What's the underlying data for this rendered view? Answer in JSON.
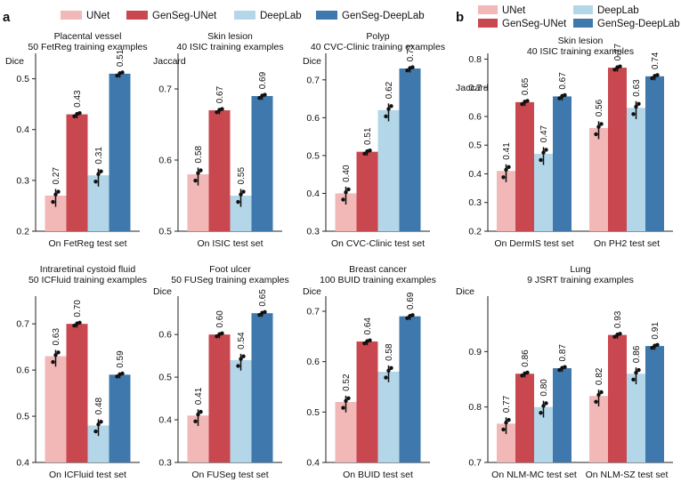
{
  "figure": {
    "panel_a_label": "a",
    "panel_b_label": "b",
    "legend": [
      {
        "label": "UNet",
        "color": "#f2b8b8"
      },
      {
        "label": "GenSeg-UNet",
        "color": "#c9474e"
      },
      {
        "label": "DeepLab",
        "color": "#b3d7e8"
      },
      {
        "label": "GenSeg-DeepLab",
        "color": "#3f78ac"
      }
    ]
  },
  "chart_data": [
    {
      "type": "bar",
      "panel": "a",
      "title_lines": [
        "Placental vessel",
        "50 FetReg training examples"
      ],
      "ylabel": "Dice",
      "ylim": [
        0.2,
        0.55
      ],
      "yticks": [
        0.2,
        0.3,
        0.4,
        0.5
      ],
      "ytick_labels": [
        "0.2",
        "0.3",
        "0.4",
        "0.5"
      ],
      "groups": [
        {
          "label": "On FetReg test set",
          "series": [
            {
              "name": "UNet",
              "value": 0.27,
              "label": "0.27"
            },
            {
              "name": "GenSeg-UNet",
              "value": 0.43,
              "label": "0.43"
            },
            {
              "name": "DeepLab",
              "value": 0.31,
              "label": "0.31"
            },
            {
              "name": "GenSeg-DeepLab",
              "value": 0.51,
              "label": "0.51"
            }
          ]
        }
      ]
    },
    {
      "type": "bar",
      "panel": "a",
      "title_lines": [
        "Skin lesion",
        "40 ISIC training examples"
      ],
      "ylabel": "Jaccard",
      "ylim": [
        0.5,
        0.75
      ],
      "yticks": [
        0.5,
        0.6,
        0.7
      ],
      "ytick_labels": [
        "0.5",
        "0.6",
        "0.7"
      ],
      "groups": [
        {
          "label": "On ISIC test set",
          "series": [
            {
              "name": "UNet",
              "value": 0.58,
              "label": "0.58"
            },
            {
              "name": "GenSeg-UNet",
              "value": 0.67,
              "label": "0.67"
            },
            {
              "name": "DeepLab",
              "value": 0.55,
              "label": "0.55"
            },
            {
              "name": "GenSeg-DeepLab",
              "value": 0.69,
              "label": "0.69"
            }
          ]
        }
      ]
    },
    {
      "type": "bar",
      "panel": "a",
      "title_lines": [
        "Polyp",
        "40 CVC-Clinic training examples"
      ],
      "ylabel": "Dice",
      "ylim": [
        0.3,
        0.77
      ],
      "yticks": [
        0.3,
        0.4,
        0.5,
        0.6,
        0.7
      ],
      "ytick_labels": [
        "0.3",
        "0.4",
        "0.5",
        "0.6",
        "0.7"
      ],
      "groups": [
        {
          "label": "On CVC-Clinic test set",
          "series": [
            {
              "name": "UNet",
              "value": 0.4,
              "label": "0.40"
            },
            {
              "name": "GenSeg-UNet",
              "value": 0.51,
              "label": "0.51"
            },
            {
              "name": "DeepLab",
              "value": 0.62,
              "label": "0.62"
            },
            {
              "name": "GenSeg-DeepLab",
              "value": 0.73,
              "label": "0.73"
            }
          ]
        }
      ]
    },
    {
      "type": "bar",
      "panel": "b",
      "title_lines": [
        "Skin lesion",
        "40 ISIC training examples"
      ],
      "ylabel": "Jaccard",
      "ylim": [
        0.2,
        0.82
      ],
      "yticks": [
        0.2,
        0.3,
        0.4,
        0.5,
        0.6,
        0.7,
        0.8
      ],
      "ytick_labels": [
        "0.2",
        "0.3",
        "0.4",
        "0.5",
        "0.6",
        "0.7",
        "0.8"
      ],
      "groups": [
        {
          "label": "On DermIS test set",
          "series": [
            {
              "name": "UNet",
              "value": 0.41,
              "label": "0.41"
            },
            {
              "name": "GenSeg-UNet",
              "value": 0.65,
              "label": "0.65"
            },
            {
              "name": "DeepLab",
              "value": 0.47,
              "label": "0.47"
            },
            {
              "name": "GenSeg-DeepLab",
              "value": 0.67,
              "label": "0.67"
            }
          ]
        },
        {
          "label": "On PH2 test set",
          "series": [
            {
              "name": "UNet",
              "value": 0.56,
              "label": "0.56"
            },
            {
              "name": "GenSeg-UNet",
              "value": 0.77,
              "label": "0.77"
            },
            {
              "name": "DeepLab",
              "value": 0.63,
              "label": "0.63"
            },
            {
              "name": "GenSeg-DeepLab",
              "value": 0.74,
              "label": "0.74"
            }
          ]
        }
      ]
    },
    {
      "type": "bar",
      "panel": "a",
      "title_lines": [
        "Intraretinal cystoid fluid",
        "50 ICFluid training examples"
      ],
      "ylabel": "",
      "ylim": [
        0.4,
        0.76
      ],
      "yticks": [
        0.4,
        0.5,
        0.6,
        0.7
      ],
      "ytick_labels": [
        "0.4",
        "0.5",
        "0.6",
        "0.7"
      ],
      "groups": [
        {
          "label": "On ICFluid test set",
          "series": [
            {
              "name": "UNet",
              "value": 0.63,
              "label": "0.63"
            },
            {
              "name": "GenSeg-UNet",
              "value": 0.7,
              "label": "0.70"
            },
            {
              "name": "DeepLab",
              "value": 0.48,
              "label": "0.48"
            },
            {
              "name": "GenSeg-DeepLab",
              "value": 0.59,
              "label": "0.59"
            }
          ]
        }
      ]
    },
    {
      "type": "bar",
      "panel": "a",
      "title_lines": [
        "Foot ulcer",
        "50 FUSeg training examples"
      ],
      "ylabel": "Dice",
      "ylim": [
        0.3,
        0.69
      ],
      "yticks": [
        0.3,
        0.4,
        0.5,
        0.6
      ],
      "ytick_labels": [
        "0.3",
        "0.4",
        "0.5",
        "0.6"
      ],
      "groups": [
        {
          "label": "On FUSeg test set",
          "series": [
            {
              "name": "UNet",
              "value": 0.41,
              "label": "0.41"
            },
            {
              "name": "GenSeg-UNet",
              "value": 0.6,
              "label": "0.60"
            },
            {
              "name": "DeepLab",
              "value": 0.54,
              "label": "0.54"
            },
            {
              "name": "GenSeg-DeepLab",
              "value": 0.65,
              "label": "0.65"
            }
          ]
        }
      ]
    },
    {
      "type": "bar",
      "panel": "a",
      "title_lines": [
        "Breast cancer",
        "100 BUID training examples"
      ],
      "ylabel": "Dice",
      "ylim": [
        0.4,
        0.73
      ],
      "yticks": [
        0.4,
        0.5,
        0.6,
        0.7
      ],
      "ytick_labels": [
        "0.4",
        "0.5",
        "0.6",
        "0.7"
      ],
      "groups": [
        {
          "label": "On BUID test set",
          "series": [
            {
              "name": "UNet",
              "value": 0.52,
              "label": "0.52"
            },
            {
              "name": "GenSeg-UNet",
              "value": 0.64,
              "label": "0.64"
            },
            {
              "name": "DeepLab",
              "value": 0.58,
              "label": "0.58"
            },
            {
              "name": "GenSeg-DeepLab",
              "value": 0.69,
              "label": "0.69"
            }
          ]
        }
      ]
    },
    {
      "type": "bar",
      "panel": "b",
      "title_lines": [
        "Lung",
        "9 JSRT training examples"
      ],
      "ylabel": "Dice",
      "ylim": [
        0.7,
        1.0
      ],
      "yticks": [
        0.7,
        0.8,
        0.9
      ],
      "ytick_labels": [
        "0.7",
        "0.8",
        "0.9"
      ],
      "groups": [
        {
          "label": "On NLM-MC test set",
          "series": [
            {
              "name": "UNet",
              "value": 0.77,
              "label": "0.77"
            },
            {
              "name": "GenSeg-UNet",
              "value": 0.86,
              "label": "0.86"
            },
            {
              "name": "DeepLab",
              "value": 0.8,
              "label": "0.80"
            },
            {
              "name": "GenSeg-DeepLab",
              "value": 0.87,
              "label": "0.87"
            }
          ]
        },
        {
          "label": "On NLM-SZ test set",
          "series": [
            {
              "name": "UNet",
              "value": 0.82,
              "label": "0.82"
            },
            {
              "name": "GenSeg-UNet",
              "value": 0.93,
              "label": "0.93"
            },
            {
              "name": "DeepLab",
              "value": 0.86,
              "label": "0.86"
            },
            {
              "name": "GenSeg-DeepLab",
              "value": 0.91,
              "label": "0.91"
            }
          ]
        }
      ]
    }
  ]
}
